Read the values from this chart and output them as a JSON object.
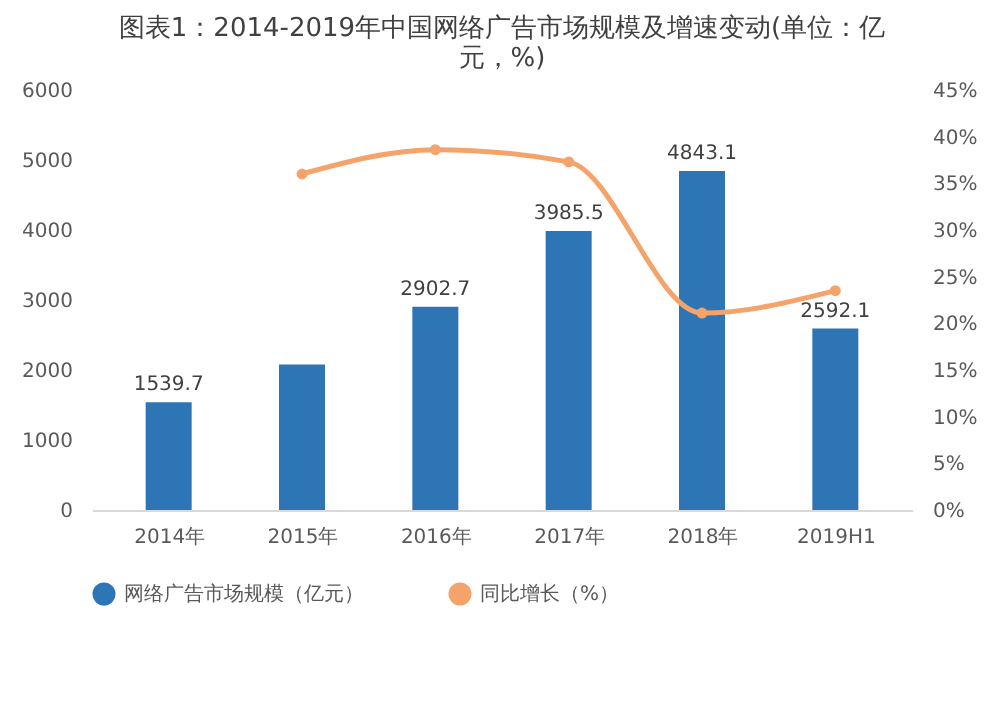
{
  "chart_data": {
    "type": "bar",
    "title": [
      "图表1：2014-2019年中国网络广告市场规模及增速变动(单位：亿",
      "元，%)"
    ],
    "categories": [
      "2014年",
      "2015年",
      "2016年",
      "2017年",
      "2018年",
      "2019H1"
    ],
    "series": [
      {
        "name": "网络广告市场规模（亿元）",
        "color": "#2e75b6",
        "values": [
          1539.7,
          2080,
          2902.7,
          3985.5,
          4843.1,
          2592.1
        ],
        "value_labels": [
          "1539.7",
          null,
          "2902.7",
          "3985.5",
          "4843.1",
          "2592.1"
        ]
      },
      {
        "name": "同比增长（%）",
        "type": "line",
        "axis": "y2",
        "color": "#f4a46a",
        "marker": "circle",
        "values": [
          null,
          36.0,
          38.6,
          37.3,
          21.1,
          23.5
        ]
      }
    ],
    "ylim": [
      0,
      6000
    ],
    "yticks": [
      0,
      1000,
      2000,
      3000,
      4000,
      5000,
      6000
    ],
    "y2lim": [
      0,
      45
    ],
    "y2ticks": [
      {
        "value": 0,
        "label": "0%"
      },
      {
        "value": 5,
        "label": "5%"
      },
      {
        "value": 10,
        "label": "10%"
      },
      {
        "value": 15,
        "label": "15%"
      },
      {
        "value": 20,
        "label": "20%"
      },
      {
        "value": 25,
        "label": "25%"
      },
      {
        "value": 30,
        "label": "30%"
      },
      {
        "value": 35,
        "label": "35%"
      },
      {
        "value": 40,
        "label": "40%"
      },
      {
        "value": 45,
        "label": "45%"
      }
    ],
    "grid": false,
    "legend": "bottom"
  }
}
